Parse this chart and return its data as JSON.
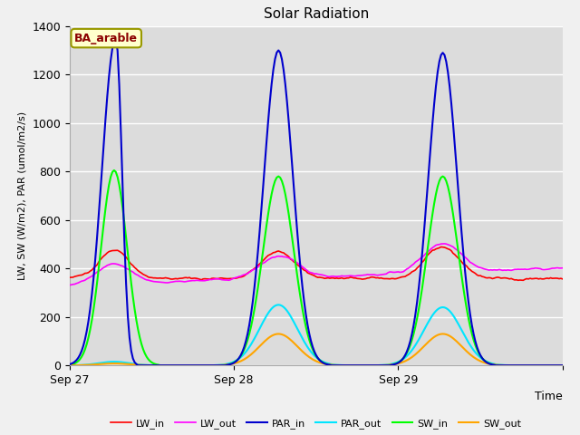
{
  "title": "Solar Radiation",
  "ylabel": "LW, SW (W/m2), PAR (umol/m2/s)",
  "xlabel": "Time",
  "ylim": [
    0,
    1400
  ],
  "xlim": [
    0,
    144
  ],
  "xtick_positions": [
    0,
    48,
    96,
    144
  ],
  "xtick_labels": [
    "Sep 27",
    "Sep 28",
    "Sep 29",
    ""
  ],
  "annotation_label": "BA_arable",
  "fig_bg_color": "#f0f0f0",
  "plot_bg_color": "#dcdcdc",
  "grid_color": "#ffffff",
  "colors": {
    "LW_in": "#ff0000",
    "LW_out": "#ff00ff",
    "PAR_in": "#0000cd",
    "PAR_out": "#00e5ff",
    "SW_in": "#00ff00",
    "SW_out": "#ffa500"
  },
  "n_points": 289,
  "figsize": [
    6.4,
    4.8
  ],
  "dpi": 100
}
